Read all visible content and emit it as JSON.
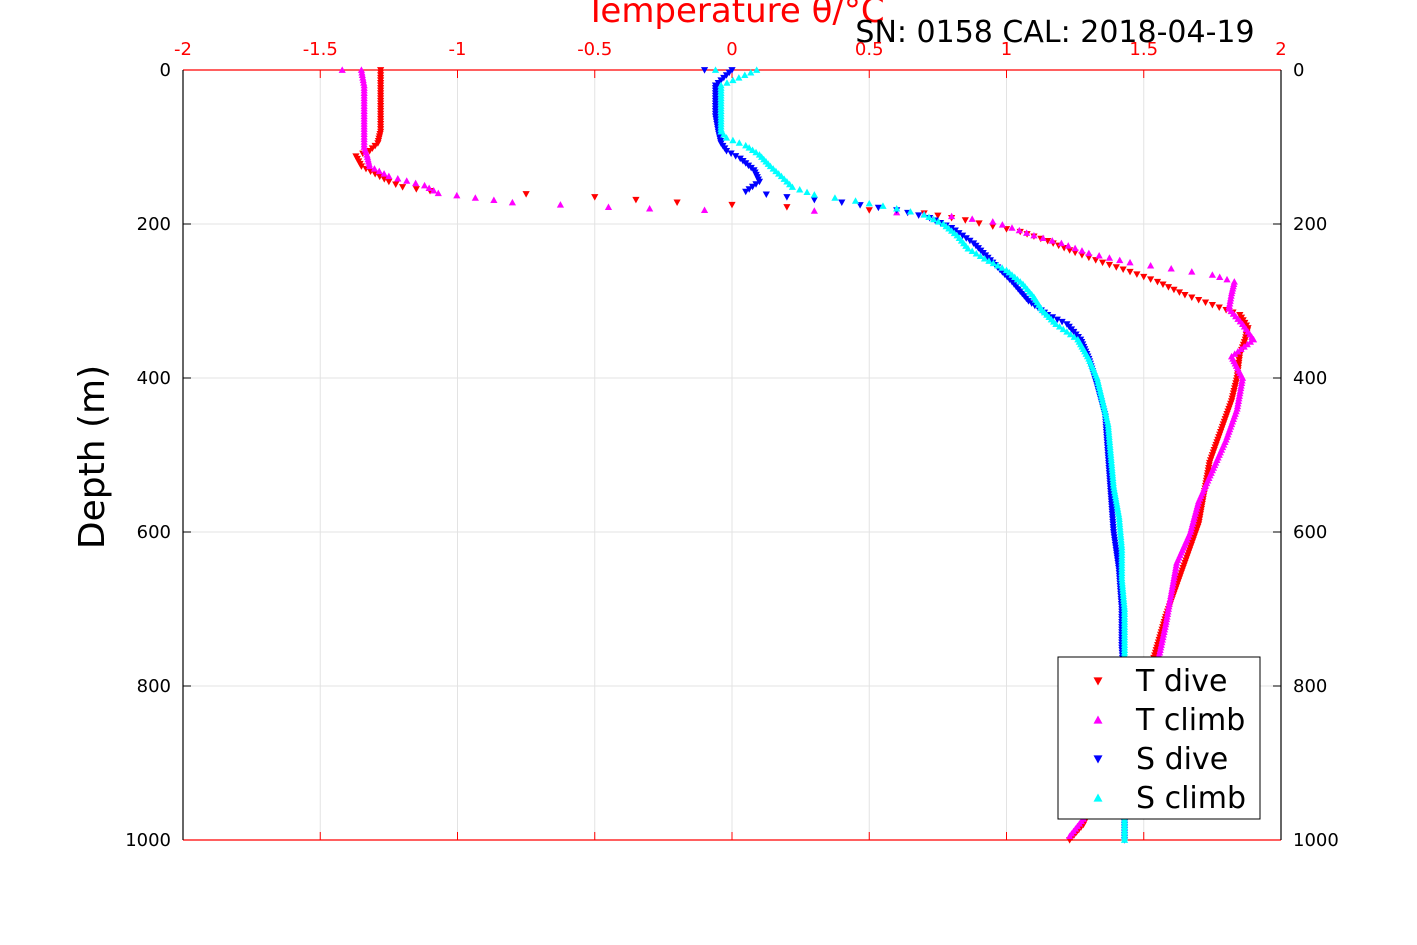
{
  "chart_data": {
    "type": "scatter",
    "title": "Temperature θ/°C",
    "subtitle": "SN: 0158  CAL: 2018-04-19",
    "ylabel": "Depth (m)",
    "xlim": [
      -2,
      2
    ],
    "ylim": [
      0,
      1000
    ],
    "y_reversed": true,
    "grid": true,
    "x_ticks": [
      "-2",
      "-1.5",
      "-1",
      "-0.5",
      "0",
      "0.5",
      "1",
      "1.5",
      "2"
    ],
    "y_ticks": [
      "0",
      "200",
      "400",
      "600",
      "800",
      "1000"
    ],
    "legend_position": "bottom-right",
    "series": [
      {
        "name": "T dive",
        "color": "#ff0000",
        "marker": "triangle-down",
        "points": [
          [
            -1.28,
            0
          ],
          [
            -1.28,
            20
          ],
          [
            -1.28,
            40
          ],
          [
            -1.28,
            60
          ],
          [
            -1.28,
            80
          ],
          [
            -1.29,
            95
          ],
          [
            -1.32,
            105
          ],
          [
            -1.37,
            112
          ],
          [
            -1.35,
            125
          ],
          [
            -1.3,
            135
          ],
          [
            -1.25,
            145
          ],
          [
            -1.2,
            152
          ],
          [
            -1.1,
            157
          ],
          [
            -0.75,
            161
          ],
          [
            -0.5,
            165
          ],
          [
            -0.2,
            172
          ],
          [
            0.2,
            178
          ],
          [
            0.5,
            182
          ],
          [
            0.7,
            186
          ],
          [
            0.85,
            195
          ],
          [
            0.95,
            203
          ],
          [
            1.05,
            210
          ],
          [
            1.15,
            222
          ],
          [
            1.25,
            237
          ],
          [
            1.35,
            250
          ],
          [
            1.45,
            262
          ],
          [
            1.55,
            275
          ],
          [
            1.65,
            292
          ],
          [
            1.75,
            305
          ],
          [
            1.85,
            318
          ],
          [
            1.88,
            335
          ],
          [
            1.87,
            350
          ],
          [
            1.85,
            370
          ],
          [
            1.84,
            400
          ],
          [
            1.82,
            430
          ],
          [
            1.78,
            470
          ],
          [
            1.74,
            510
          ],
          [
            1.72,
            550
          ],
          [
            1.7,
            590
          ],
          [
            1.66,
            630
          ],
          [
            1.62,
            670
          ],
          [
            1.58,
            710
          ],
          [
            1.54,
            760
          ],
          [
            1.5,
            800
          ],
          [
            1.44,
            860
          ],
          [
            1.36,
            920
          ],
          [
            1.28,
            980
          ],
          [
            1.23,
            1000
          ]
        ]
      },
      {
        "name": "T climb",
        "color": "#ff00ff",
        "marker": "triangle-up",
        "points": [
          [
            -1.42,
            0
          ],
          [
            -1.35,
            0
          ],
          [
            -1.34,
            20
          ],
          [
            -1.34,
            40
          ],
          [
            -1.34,
            60
          ],
          [
            -1.34,
            80
          ],
          [
            -1.34,
            100
          ],
          [
            -1.33,
            110
          ],
          [
            -1.32,
            125
          ],
          [
            -1.25,
            138
          ],
          [
            -1.12,
            150
          ],
          [
            -1.07,
            160
          ],
          [
            -0.8,
            172
          ],
          [
            -0.45,
            178
          ],
          [
            -0.3,
            180
          ],
          [
            -0.1,
            182
          ],
          [
            0.3,
            183
          ],
          [
            0.6,
            185
          ],
          [
            0.8,
            190
          ],
          [
            0.95,
            197
          ],
          [
            1.02,
            205
          ],
          [
            1.1,
            215
          ],
          [
            1.2,
            225
          ],
          [
            1.3,
            238
          ],
          [
            1.45,
            250
          ],
          [
            1.6,
            258
          ],
          [
            1.75,
            266
          ],
          [
            1.83,
            275
          ],
          [
            1.82,
            290
          ],
          [
            1.81,
            310
          ],
          [
            1.86,
            330
          ],
          [
            1.9,
            350
          ],
          [
            1.82,
            372
          ],
          [
            1.86,
            400
          ],
          [
            1.84,
            440
          ],
          [
            1.8,
            480
          ],
          [
            1.75,
            520
          ],
          [
            1.7,
            560
          ],
          [
            1.67,
            600
          ],
          [
            1.62,
            640
          ],
          [
            1.6,
            680
          ],
          [
            1.58,
            720
          ],
          [
            1.55,
            770
          ],
          [
            1.5,
            830
          ],
          [
            1.43,
            890
          ],
          [
            1.33,
            950
          ],
          [
            1.23,
            995
          ]
        ]
      },
      {
        "name": "S dive",
        "color": "#0000ff",
        "marker": "triangle-down",
        "points": [
          [
            -0.1,
            0
          ],
          [
            0.0,
            0
          ],
          [
            -0.06,
            20
          ],
          [
            -0.06,
            40
          ],
          [
            -0.06,
            60
          ],
          [
            -0.05,
            80
          ],
          [
            -0.04,
            95
          ],
          [
            -0.02,
            105
          ],
          [
            0.03,
            115
          ],
          [
            0.08,
            130
          ],
          [
            0.1,
            145
          ],
          [
            0.05,
            158
          ],
          [
            0.2,
            165
          ],
          [
            0.4,
            172
          ],
          [
            0.6,
            182
          ],
          [
            0.72,
            192
          ],
          [
            0.8,
            205
          ],
          [
            0.88,
            225
          ],
          [
            0.95,
            250
          ],
          [
            1.02,
            275
          ],
          [
            1.08,
            300
          ],
          [
            1.15,
            318
          ],
          [
            1.22,
            330
          ],
          [
            1.27,
            350
          ],
          [
            1.3,
            375
          ],
          [
            1.33,
            410
          ],
          [
            1.36,
            450
          ],
          [
            1.37,
            500
          ],
          [
            1.38,
            550
          ],
          [
            1.39,
            600
          ],
          [
            1.41,
            650
          ],
          [
            1.42,
            700
          ],
          [
            1.42,
            750
          ],
          [
            1.43,
            800
          ],
          [
            1.43,
            850
          ],
          [
            1.43,
            900
          ],
          [
            1.43,
            950
          ],
          [
            1.43,
            1000
          ]
        ]
      },
      {
        "name": "S climb",
        "color": "#00ffff",
        "marker": "triangle-up",
        "points": [
          [
            -0.06,
            0
          ],
          [
            0.09,
            0
          ],
          [
            -0.04,
            20
          ],
          [
            -0.04,
            40
          ],
          [
            -0.04,
            60
          ],
          [
            -0.04,
            80
          ],
          [
            -0.02,
            88
          ],
          [
            0.05,
            98
          ],
          [
            0.1,
            110
          ],
          [
            0.14,
            125
          ],
          [
            0.18,
            138
          ],
          [
            0.22,
            152
          ],
          [
            0.3,
            162
          ],
          [
            0.45,
            170
          ],
          [
            0.6,
            180
          ],
          [
            0.7,
            188
          ],
          [
            0.77,
            200
          ],
          [
            0.82,
            215
          ],
          [
            0.86,
            232
          ],
          [
            0.92,
            245
          ],
          [
            1.0,
            260
          ],
          [
            1.06,
            278
          ],
          [
            1.1,
            295
          ],
          [
            1.13,
            312
          ],
          [
            1.18,
            330
          ],
          [
            1.26,
            350
          ],
          [
            1.3,
            375
          ],
          [
            1.33,
            400
          ],
          [
            1.35,
            430
          ],
          [
            1.37,
            460
          ],
          [
            1.38,
            500
          ],
          [
            1.39,
            540
          ],
          [
            1.41,
            580
          ],
          [
            1.42,
            620
          ],
          [
            1.42,
            660
          ],
          [
            1.43,
            700
          ],
          [
            1.43,
            750
          ],
          [
            1.43,
            800
          ],
          [
            1.43,
            850
          ],
          [
            1.43,
            900
          ],
          [
            1.43,
            950
          ],
          [
            1.43,
            1000
          ]
        ]
      }
    ]
  }
}
